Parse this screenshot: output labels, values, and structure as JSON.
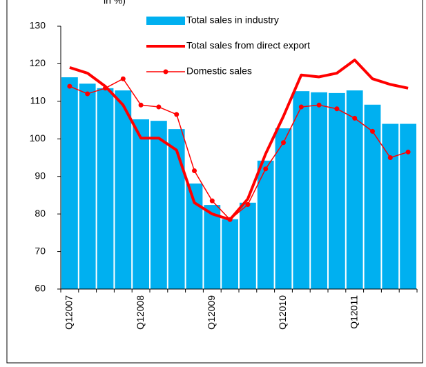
{
  "chart_data": {
    "type": "bar",
    "title": "in %)",
    "categories": [
      "Q12007",
      null,
      null,
      null,
      "Q12008",
      null,
      null,
      null,
      "Q12009",
      null,
      null,
      null,
      "Q12010",
      null,
      null,
      null,
      "Q12011",
      null,
      null,
      null
    ],
    "series": [
      {
        "name": "Total sales in industry",
        "type": "bar",
        "color": "#00b0f0",
        "values": [
          116.4,
          114.7,
          113.5,
          112.9,
          105.2,
          104.8,
          102.6,
          88.1,
          82.4,
          78.6,
          83,
          94.2,
          102.8,
          112.7,
          112.4,
          112.2,
          112.9,
          109.1,
          104,
          104
        ]
      },
      {
        "name": "Total sales from direct export",
        "type": "line",
        "color": "#ff0000",
        "values": [
          119,
          117.5,
          114,
          109,
          100.2,
          100.2,
          97,
          83,
          80,
          78.5,
          84,
          96,
          106,
          117,
          116.5,
          117.5,
          121,
          116,
          114.5,
          113.5
        ]
      },
      {
        "name": "Domestic sales",
        "type": "line-markers",
        "color": "#ff0000",
        "values": [
          114,
          112,
          113.5,
          116,
          109,
          108.5,
          106.5,
          91.5,
          83.5,
          78.5,
          82.5,
          92,
          99,
          108.5,
          109,
          108,
          105.5,
          102,
          95,
          96.5
        ]
      }
    ],
    "ylim": [
      60,
      130
    ],
    "yticks": [
      60,
      70,
      80,
      90,
      100,
      110,
      120,
      130
    ]
  }
}
